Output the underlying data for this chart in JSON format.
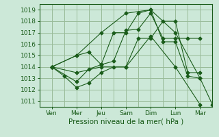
{
  "xlabel": "Pression niveau de la mer( hPa )",
  "background_color": "#cce8d8",
  "grid_color": "#99bb99",
  "line_color": "#1a5c1a",
  "ylim": [
    1010.5,
    1019.5
  ],
  "yticks": [
    1011,
    1012,
    1013,
    1014,
    1015,
    1016,
    1017,
    1018,
    1019
  ],
  "day_labels": [
    "Ven",
    "Mer",
    "Jeu",
    "Sam",
    "Dim",
    "Lun",
    "Mar"
  ],
  "day_x": [
    0,
    1,
    2,
    3,
    4,
    5,
    6
  ],
  "xlim": [
    -0.5,
    6.5
  ],
  "series": [
    {
      "x": [
        0,
        0.5,
        1,
        1.5,
        2,
        2.5,
        3,
        3.5,
        4,
        4.5,
        5,
        5.5,
        6
      ],
      "y": [
        1014.0,
        1013.2,
        1012.2,
        1012.6,
        1013.5,
        1014.0,
        1014.0,
        1016.5,
        1016.5,
        1018.0,
        1018.0,
        1013.5,
        1013.5
      ]
    },
    {
      "x": [
        0,
        1,
        1.5,
        2,
        2.5,
        3,
        3.5,
        4,
        4.5,
        5,
        5.5,
        6
      ],
      "y": [
        1014.0,
        1015.0,
        1015.3,
        1014.2,
        1014.5,
        1017.2,
        1017.3,
        1018.7,
        1016.5,
        1016.5,
        1016.5,
        1016.5
      ]
    },
    {
      "x": [
        0,
        1,
        1.5,
        2,
        2.5,
        3,
        3.5,
        4,
        4.5,
        5,
        5.5,
        6,
        6.5
      ],
      "y": [
        1014.0,
        1012.7,
        1013.8,
        1014.2,
        1017.0,
        1017.0,
        1018.7,
        1019.0,
        1016.2,
        1016.2,
        1013.2,
        1013.0,
        1010.7
      ]
    },
    {
      "x": [
        0,
        1,
        2,
        3,
        4,
        5,
        6
      ],
      "y": [
        1014.0,
        1015.0,
        1017.0,
        1018.7,
        1019.0,
        1017.0,
        1013.0
      ]
    },
    {
      "x": [
        0,
        1,
        2,
        3,
        4,
        5,
        6
      ],
      "y": [
        1014.0,
        1013.5,
        1014.0,
        1014.0,
        1016.7,
        1014.0,
        1010.7
      ]
    }
  ]
}
